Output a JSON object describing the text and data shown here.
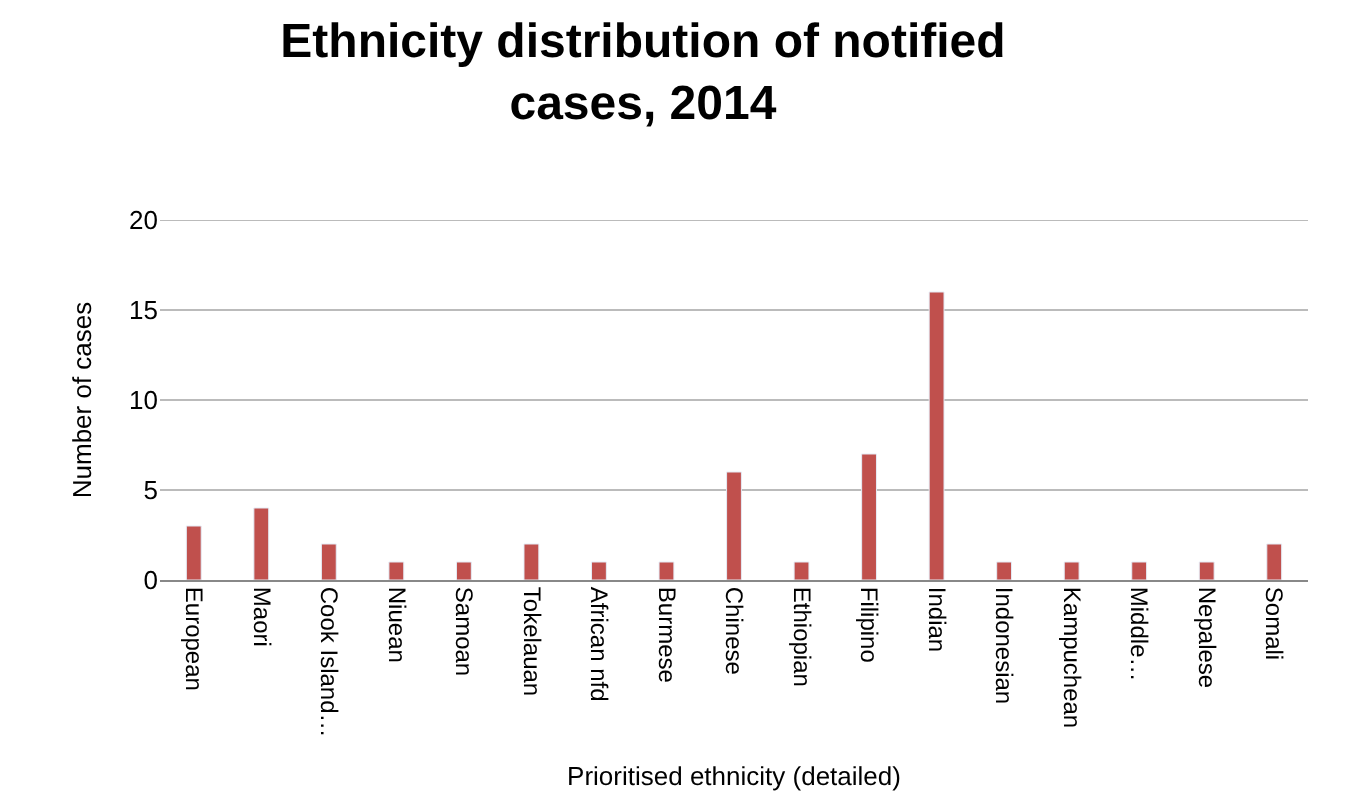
{
  "chart_data": {
    "type": "bar",
    "title": "Ethnicity distribution of notified cases, 2014",
    "xlabel": "Prioritised ethnicity (detailed)",
    "ylabel": "Number of cases",
    "categories": [
      "European",
      "Maori",
      "Cook Island…",
      "Niuean",
      "Samoan",
      "Tokelauan",
      "African nfd",
      "Burmese",
      "Chinese",
      "Ethiopian",
      "Filipino",
      "Indian",
      "Indonesian",
      "Kampuchean",
      "Middle…",
      "Nepalese",
      "Somali"
    ],
    "values": [
      3,
      4,
      2,
      1,
      1,
      2,
      1,
      1,
      6,
      1,
      7,
      16,
      1,
      1,
      1,
      1,
      2
    ],
    "color": "#c0504d",
    "ylim": [
      0,
      20
    ],
    "yticks": [
      0,
      5,
      10,
      15,
      20
    ],
    "grid": "y"
  }
}
